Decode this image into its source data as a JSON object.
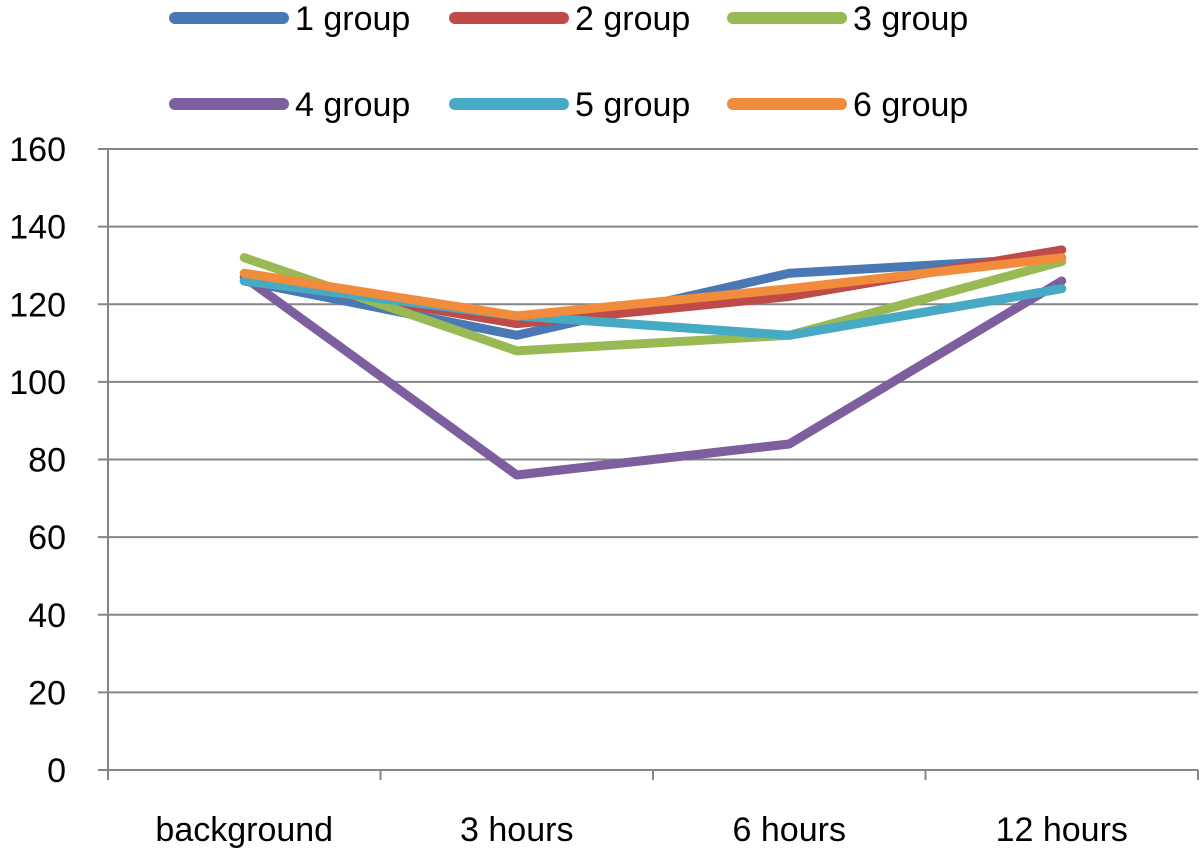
{
  "chart_data": {
    "type": "line",
    "categories": [
      "background",
      "3 hours",
      "6 hours",
      "12 hours"
    ],
    "series": [
      {
        "name": "1 group",
        "color": "#4A78B5",
        "values": [
          126,
          112,
          128,
          132
        ]
      },
      {
        "name": "2 group",
        "color": "#BE4B48",
        "values": [
          127,
          115,
          122,
          134
        ]
      },
      {
        "name": "3 group",
        "color": "#98B954",
        "values": [
          132,
          108,
          112,
          131
        ]
      },
      {
        "name": "4 group",
        "color": "#7D5FA0",
        "values": [
          127,
          76,
          84,
          126
        ]
      },
      {
        "name": "5 group",
        "color": "#46AAC5",
        "values": [
          126,
          117,
          112,
          124
        ]
      },
      {
        "name": "6 group",
        "color": "#F08C3C",
        "values": [
          128,
          117,
          124,
          132
        ]
      }
    ],
    "ylim": [
      0,
      160
    ],
    "ytick_step": 20,
    "yticks": [
      "0",
      "20",
      "40",
      "60",
      "80",
      "100",
      "120",
      "140",
      "160"
    ],
    "grid": true,
    "legend_position": "top",
    "title": "",
    "xlabel": "",
    "ylabel": ""
  }
}
